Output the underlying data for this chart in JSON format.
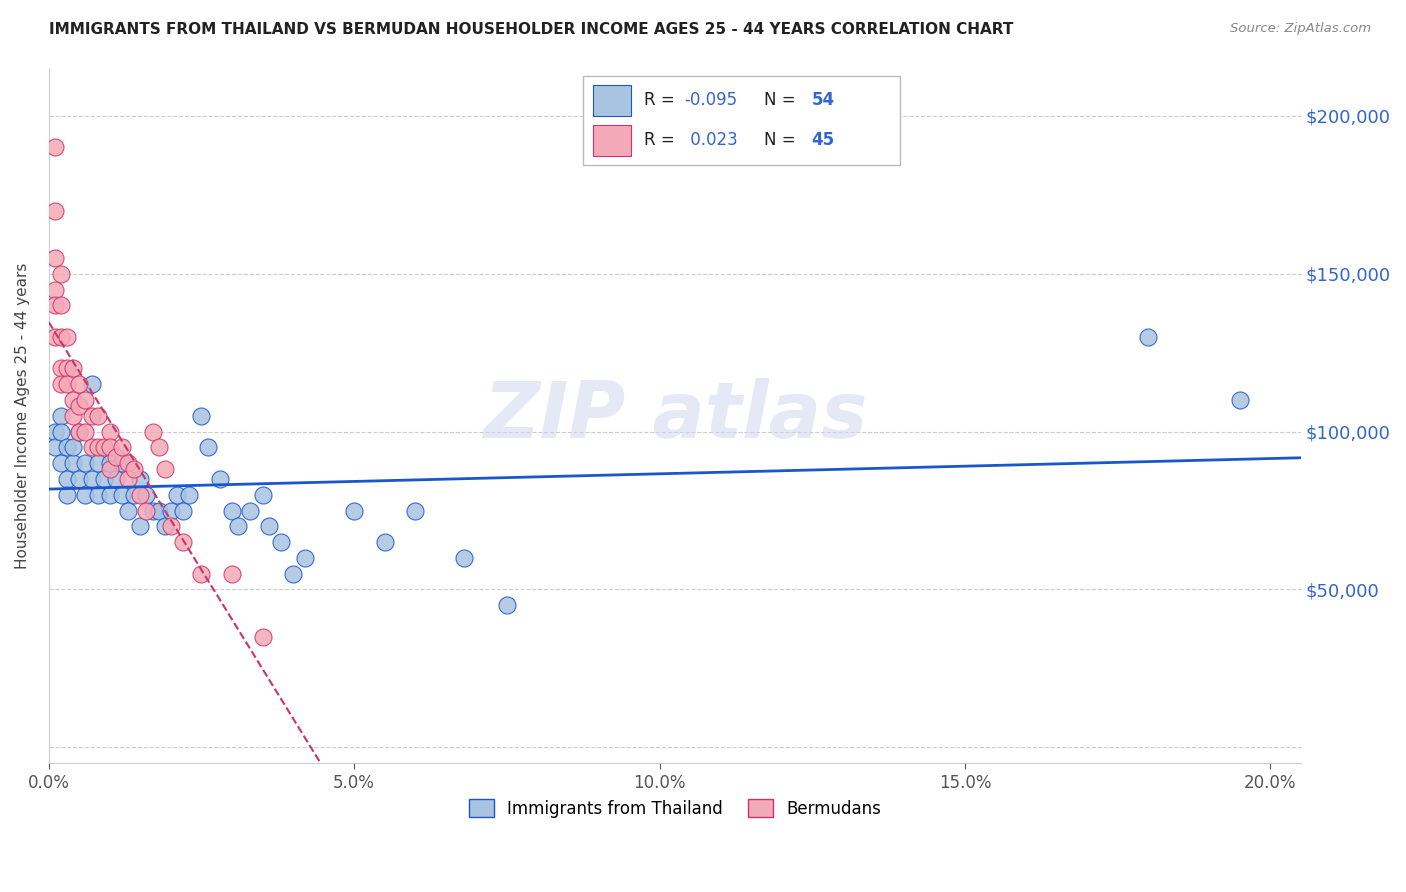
{
  "title": "IMMIGRANTS FROM THAILAND VS BERMUDAN HOUSEHOLDER INCOME AGES 25 - 44 YEARS CORRELATION CHART",
  "source": "Source: ZipAtlas.com",
  "ylabel": "Householder Income Ages 25 - 44 years",
  "legend_label1": "Immigrants from Thailand",
  "legend_label2": "Bermudans",
  "r1": "-0.095",
  "n1": "54",
  "r2": "0.023",
  "n2": "45",
  "color_blue": "#A8C4E0",
  "color_pink": "#F4A9B8",
  "trendline_blue": "#1A56CC",
  "trendline_pink": "#CC3366",
  "right_axis_color": "#3366CC",
  "xlim": [
    0.0,
    0.205
  ],
  "ylim": [
    -5000,
    215000
  ],
  "yticks": [
    0,
    50000,
    100000,
    150000,
    200000
  ],
  "xticks": [
    0.0,
    0.05,
    0.1,
    0.15,
    0.2
  ],
  "scatter_blue_x": [
    0.001,
    0.001,
    0.002,
    0.002,
    0.002,
    0.003,
    0.003,
    0.003,
    0.004,
    0.004,
    0.005,
    0.005,
    0.006,
    0.006,
    0.007,
    0.007,
    0.008,
    0.008,
    0.009,
    0.01,
    0.01,
    0.011,
    0.012,
    0.012,
    0.013,
    0.014,
    0.015,
    0.015,
    0.016,
    0.017,
    0.018,
    0.019,
    0.02,
    0.021,
    0.022,
    0.023,
    0.025,
    0.026,
    0.028,
    0.03,
    0.031,
    0.033,
    0.035,
    0.036,
    0.038,
    0.04,
    0.042,
    0.05,
    0.055,
    0.06,
    0.068,
    0.075,
    0.18,
    0.195
  ],
  "scatter_blue_y": [
    100000,
    95000,
    105000,
    90000,
    100000,
    95000,
    85000,
    80000,
    90000,
    95000,
    85000,
    100000,
    90000,
    80000,
    115000,
    85000,
    90000,
    80000,
    85000,
    90000,
    80000,
    85000,
    80000,
    90000,
    75000,
    80000,
    85000,
    70000,
    80000,
    75000,
    75000,
    70000,
    75000,
    80000,
    75000,
    80000,
    105000,
    95000,
    85000,
    75000,
    70000,
    75000,
    80000,
    70000,
    65000,
    55000,
    60000,
    75000,
    65000,
    75000,
    60000,
    45000,
    130000,
    110000
  ],
  "scatter_pink_x": [
    0.001,
    0.001,
    0.001,
    0.001,
    0.001,
    0.001,
    0.002,
    0.002,
    0.002,
    0.002,
    0.002,
    0.003,
    0.003,
    0.003,
    0.004,
    0.004,
    0.004,
    0.005,
    0.005,
    0.005,
    0.006,
    0.006,
    0.007,
    0.007,
    0.008,
    0.008,
    0.009,
    0.01,
    0.01,
    0.01,
    0.011,
    0.012,
    0.013,
    0.013,
    0.014,
    0.015,
    0.016,
    0.017,
    0.018,
    0.019,
    0.02,
    0.022,
    0.025,
    0.03,
    0.035
  ],
  "scatter_pink_y": [
    190000,
    170000,
    155000,
    145000,
    140000,
    130000,
    150000,
    140000,
    130000,
    120000,
    115000,
    130000,
    120000,
    115000,
    120000,
    110000,
    105000,
    115000,
    108000,
    100000,
    110000,
    100000,
    105000,
    95000,
    95000,
    105000,
    95000,
    100000,
    95000,
    88000,
    92000,
    95000,
    90000,
    85000,
    88000,
    80000,
    75000,
    100000,
    95000,
    88000,
    70000,
    65000,
    55000,
    55000,
    35000
  ]
}
